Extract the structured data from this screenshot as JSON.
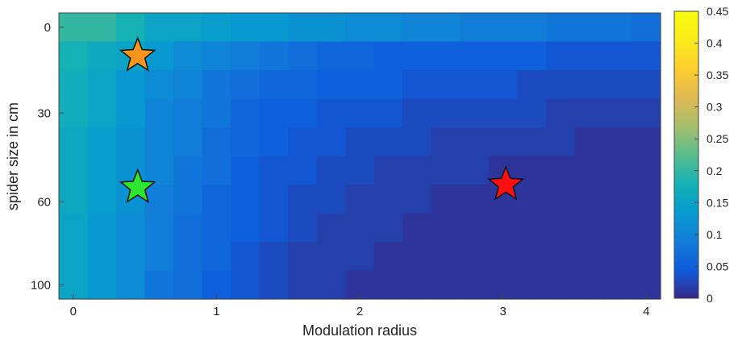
{
  "chart_data": {
    "type": "heatmap",
    "xlabel": "Modulation radius",
    "ylabel": "spider size in cm",
    "x_ticks": [
      "0",
      "1",
      "2",
      "3",
      "4"
    ],
    "y_ticks": [
      "0",
      "30",
      "60",
      "100"
    ],
    "xlim": [
      -0.1,
      4.1
    ],
    "colorbar": {
      "min": 0,
      "max": 0.45,
      "ticks": [
        "0",
        "0.05",
        "0.1",
        "0.15",
        "0.2",
        "0.25",
        "0.3",
        "0.35",
        "0.4",
        "0.45"
      ],
      "colormap": "parula"
    },
    "values": [
      [
        0.2,
        0.2,
        0.18,
        0.15,
        0.15,
        0.14,
        0.13,
        0.13,
        0.12,
        0.12,
        0.11,
        0.11,
        0.1,
        0.1,
        0.09,
        0.09,
        0.09,
        0.08,
        0.08,
        0.08,
        0.07
      ],
      [
        0.18,
        0.16,
        0.15,
        0.13,
        0.11,
        0.1,
        0.09,
        0.08,
        0.07,
        0.06,
        0.06,
        0.05,
        0.05,
        0.05,
        0.05,
        0.05,
        0.05,
        0.04,
        0.04,
        0.04,
        0.04
      ],
      [
        0.17,
        0.15,
        0.13,
        0.11,
        0.1,
        0.08,
        0.07,
        0.06,
        0.06,
        0.05,
        0.05,
        0.05,
        0.04,
        0.04,
        0.04,
        0.04,
        0.03,
        0.03,
        0.03,
        0.03,
        0.03
      ],
      [
        0.17,
        0.15,
        0.13,
        0.1,
        0.09,
        0.08,
        0.06,
        0.05,
        0.05,
        0.04,
        0.04,
        0.04,
        0.03,
        0.03,
        0.03,
        0.03,
        0.03,
        0.02,
        0.02,
        0.02,
        0.02
      ],
      [
        0.16,
        0.14,
        0.12,
        0.1,
        0.09,
        0.07,
        0.06,
        0.05,
        0.04,
        0.04,
        0.03,
        0.03,
        0.03,
        0.02,
        0.02,
        0.02,
        0.02,
        0.02,
        0.01,
        0.01,
        0.01
      ],
      [
        0.16,
        0.14,
        0.12,
        0.1,
        0.08,
        0.07,
        0.05,
        0.04,
        0.04,
        0.03,
        0.03,
        0.02,
        0.02,
        0.02,
        0.02,
        0.01,
        0.01,
        0.01,
        0.01,
        0.01,
        0.01
      ],
      [
        0.16,
        0.14,
        0.12,
        0.09,
        0.08,
        0.06,
        0.05,
        0.04,
        0.03,
        0.03,
        0.02,
        0.02,
        0.02,
        0.01,
        0.01,
        0.01,
        0.01,
        0.01,
        0.01,
        0.01,
        0.01
      ],
      [
        0.15,
        0.13,
        0.11,
        0.09,
        0.07,
        0.06,
        0.05,
        0.04,
        0.03,
        0.02,
        0.02,
        0.02,
        0.01,
        0.01,
        0.01,
        0.01,
        0.01,
        0.01,
        0.01,
        0.01,
        0.01
      ],
      [
        0.15,
        0.13,
        0.11,
        0.09,
        0.07,
        0.06,
        0.04,
        0.03,
        0.02,
        0.02,
        0.02,
        0.01,
        0.01,
        0.01,
        0.01,
        0.01,
        0.01,
        0.01,
        0.01,
        0.01,
        0.01
      ],
      [
        0.15,
        0.13,
        0.11,
        0.08,
        0.07,
        0.05,
        0.04,
        0.03,
        0.02,
        0.02,
        0.01,
        0.01,
        0.01,
        0.01,
        0.01,
        0.01,
        0.01,
        0.01,
        0.01,
        0.01,
        0.01
      ]
    ],
    "markers": [
      {
        "name": "orange-star",
        "x": 0.45,
        "row": 1,
        "color": "#f7941d"
      },
      {
        "name": "green-star",
        "x": 0.45,
        "row": 5.6,
        "color": "#2ee62e"
      },
      {
        "name": "red-star",
        "x": 3.02,
        "row": 5.5,
        "color": "#ff1010"
      }
    ]
  }
}
